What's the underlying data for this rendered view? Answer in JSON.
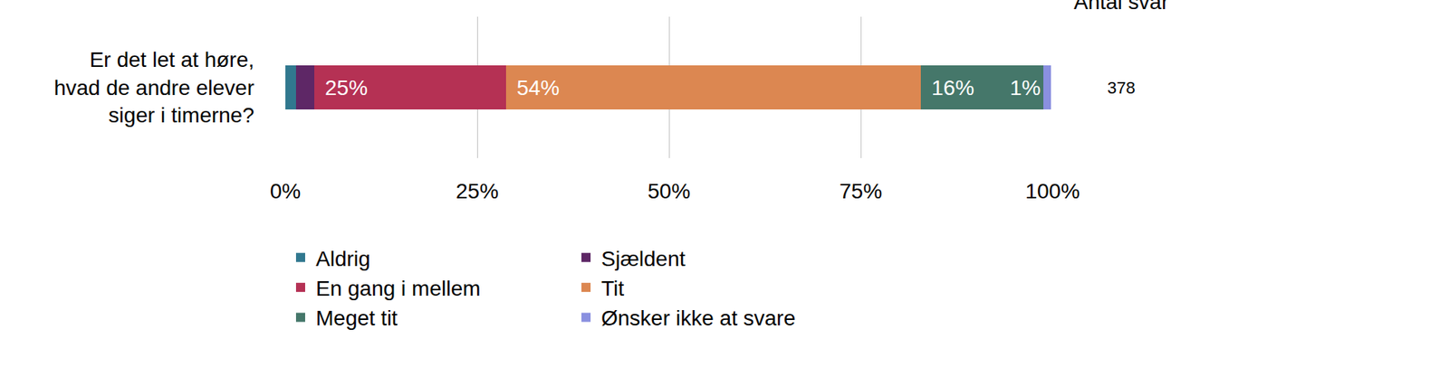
{
  "chart_data": {
    "type": "bar",
    "orientation": "horizontal",
    "stacked": true,
    "categories": [
      "Er det let at høre, hvad de andre elever siger i timerne?"
    ],
    "series": [
      {
        "name": "Aldrig",
        "color": "#31788f",
        "values": [
          1.4
        ],
        "value_labels": [
          null
        ]
      },
      {
        "name": "Sjældent",
        "color": "#5e2766",
        "values": [
          2.4
        ],
        "value_labels": [
          null
        ]
      },
      {
        "name": "En gang i mellem",
        "color": "#b53154",
        "values": [
          25
        ],
        "value_labels": [
          "25%"
        ]
      },
      {
        "name": "Tit",
        "color": "#dc8751",
        "values": [
          54
        ],
        "value_labels": [
          "54%"
        ]
      },
      {
        "name": "Meget tit",
        "color": "#45776a",
        "values": [
          16
        ],
        "value_labels": [
          "16%"
        ]
      },
      {
        "name": "Ønsker ikke at svare",
        "color": "#8a90e0",
        "values": [
          1
        ],
        "value_labels": [
          "1%"
        ]
      }
    ],
    "xlim": [
      0,
      100
    ],
    "xticks": [
      {
        "value": 0,
        "label": "0%"
      },
      {
        "value": 25,
        "label": "25%"
      },
      {
        "value": 50,
        "label": "50%"
      },
      {
        "value": 75,
        "label": "75%"
      },
      {
        "value": 100,
        "label": "100%"
      }
    ],
    "grid": true,
    "legend": "bottom",
    "data_labels": true,
    "count_title": "Antal svar",
    "counts": [
      378
    ]
  }
}
